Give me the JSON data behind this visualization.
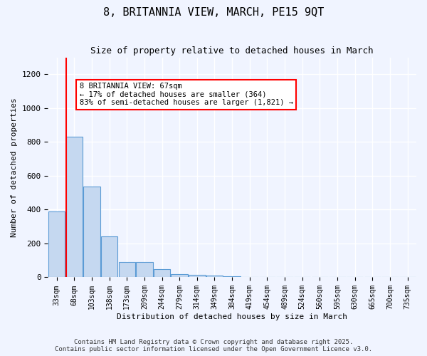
{
  "title": "8, BRITANNIA VIEW, MARCH, PE15 9QT",
  "subtitle": "Size of property relative to detached houses in March",
  "xlabel": "Distribution of detached houses by size in March",
  "ylabel": "Number of detached properties",
  "bar_color": "#c5d8f0",
  "bar_edge_color": "#5b9bd5",
  "background_color": "#f0f4ff",
  "grid_color": "#ffffff",
  "categories": [
    "33sqm",
    "68sqm",
    "103sqm",
    "138sqm",
    "173sqm",
    "209sqm",
    "244sqm",
    "279sqm",
    "314sqm",
    "349sqm",
    "384sqm",
    "419sqm",
    "454sqm",
    "489sqm",
    "524sqm",
    "560sqm",
    "595sqm",
    "630sqm",
    "665sqm",
    "700sqm",
    "735sqm"
  ],
  "values": [
    390,
    830,
    535,
    243,
    90,
    90,
    50,
    20,
    15,
    10,
    8,
    4,
    0,
    0,
    0,
    0,
    0,
    0,
    0,
    0,
    0
  ],
  "ylim": [
    0,
    1300
  ],
  "yticks": [
    0,
    200,
    400,
    600,
    800,
    1000,
    1200
  ],
  "property_line_x": 1,
  "annotation_text": "8 BRITANNIA VIEW: 67sqm\n← 17% of detached houses are smaller (364)\n83% of semi-detached houses are larger (1,821) →",
  "annotation_box_color": "white",
  "annotation_box_edge": "red",
  "vline_color": "red",
  "footnote1": "Contains HM Land Registry data © Crown copyright and database right 2025.",
  "footnote2": "Contains public sector information licensed under the Open Government Licence v3.0."
}
